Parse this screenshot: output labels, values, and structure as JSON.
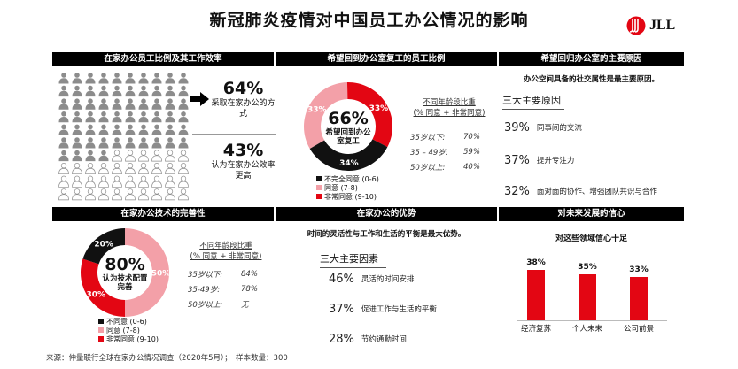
{
  "title": "新冠肺炎疫情对中国员工办公情况的影响",
  "logo": {
    "text": "JLL"
  },
  "panel1": {
    "header": "在家办公员工比例及其工作效率",
    "stat1": {
      "value": "64%",
      "label": "采取在家办公的方式"
    },
    "stat2": {
      "value": "43%",
      "label": "认为在家办公效率更高"
    },
    "icon_grid": {
      "filled": 64,
      "total": 100
    }
  },
  "panel2": {
    "header": "希望回到办公室复工的员工比例",
    "center_value": "66%",
    "center_label": "希望回到办公室复工",
    "segments": [
      {
        "name": "不完全同意 (0-6)",
        "value": 34,
        "label": "34%",
        "color": "#111111"
      },
      {
        "name": "同意 (7-8)",
        "value": 33,
        "label": "33%",
        "color": "#f3a0a8"
      },
      {
        "name": "非常同意 (9-10)",
        "value": 33,
        "label": "33%",
        "color": "#e30613"
      }
    ],
    "age_title": "不同年龄段比重",
    "age_subtitle": "(% 同意 + 非常同意)",
    "age_rows": [
      {
        "label": "35岁以下:",
        "value": "70%"
      },
      {
        "label": "35 – 49岁:",
        "value": "59%"
      },
      {
        "label": "50岁以上:",
        "value": "40%"
      }
    ]
  },
  "panel3": {
    "header": "希望回归办公室的主要原因",
    "summary": "办公空间具备的社交属性是最主要原因。",
    "list_title": "三大主要原因",
    "items": [
      {
        "pct": "39%",
        "text": "同事间的交流"
      },
      {
        "pct": "37%",
        "text": "提升专注力"
      },
      {
        "pct": "32%",
        "text": "面对面的协作、增强团队共识与合作"
      }
    ]
  },
  "panel4": {
    "header": "在家办公技术的完善性",
    "center_value": "80%",
    "center_label": "认为技术配置完善",
    "segments": [
      {
        "name": "不同意 (0-6)",
        "value": 20,
        "label": "20%",
        "color": "#111111"
      },
      {
        "name": "同意 (7-8)",
        "value": 50,
        "label": "50%",
        "color": "#f3a0a8"
      },
      {
        "name": "非常同意 (9-10)",
        "value": 30,
        "label": "30%",
        "color": "#e30613"
      }
    ],
    "age_title": "不同年龄段比重",
    "age_subtitle": "(% 同意 + 非常同意)",
    "age_rows": [
      {
        "label": "35岁以下:",
        "value": "84%"
      },
      {
        "label": "35-49岁:",
        "value": "78%"
      },
      {
        "label": "50岁以上:",
        "value": "无"
      }
    ]
  },
  "panel5": {
    "header": "在家办公的优势",
    "summary": "时间的灵活性与工作和生活的平衡是最大优势。",
    "list_title": "三大主要因素",
    "items": [
      {
        "pct": "46%",
        "text": "灵活的时间安排"
      },
      {
        "pct": "37%",
        "text": "促进工作与生活的平衡"
      },
      {
        "pct": "28%",
        "text": "节约通勤时间"
      }
    ]
  },
  "panel6": {
    "header": "对未来发展的信心",
    "subtitle": "对这些领域信心十足"
  },
  "chart_data": {
    "type": "bar",
    "title": "对这些领域信心十足",
    "categories": [
      "经济复苏",
      "个人未来",
      "公司前景"
    ],
    "values": [
      38,
      35,
      33
    ],
    "labels": [
      "38%",
      "35%",
      "33%"
    ],
    "ylim": [
      0,
      40
    ],
    "color": "#e30613"
  },
  "footer": "来源：仲量联行全球在家办公情况调查（2020年5月）；　样本数量：300"
}
